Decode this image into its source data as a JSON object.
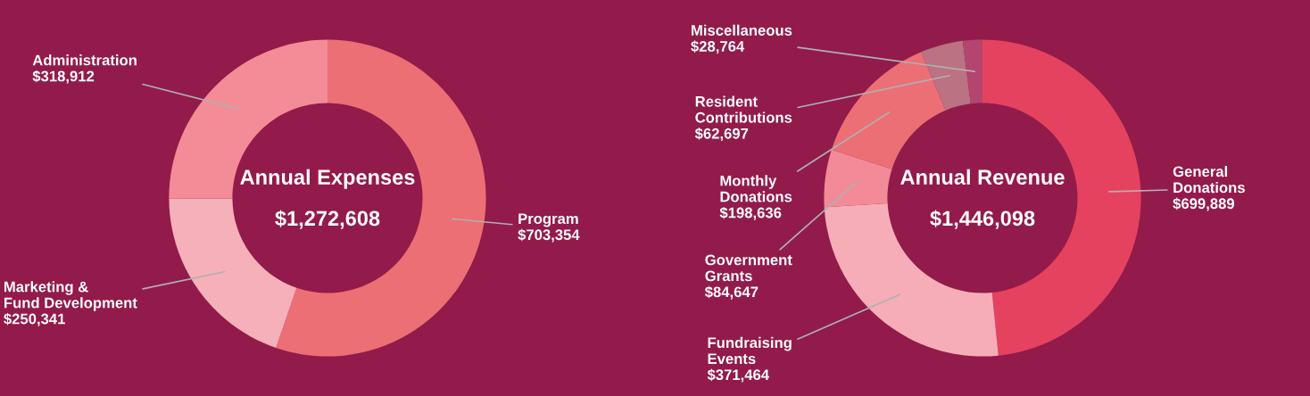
{
  "chart_data": [
    {
      "type": "donut",
      "title": "Annual Expenses",
      "subtitle": "$1,272,608",
      "categories": [
        "Program",
        "Marketing &\nFund Development",
        "Administration"
      ],
      "values": [
        703354,
        250341,
        318912
      ],
      "colors": [
        "#ec6f75",
        "#f6b0b9",
        "#f48c98"
      ],
      "value_labels": [
        "$703,354",
        "$250,341",
        "$318,912"
      ]
    },
    {
      "type": "donut",
      "title": "Annual Revenue",
      "subtitle": "$1,446,098",
      "categories": [
        "General\nDonations",
        "Fundraising\nEvents",
        "Government\nGrants",
        "Monthly\nDonations",
        "Resident\nContributions",
        "Miscellaneous"
      ],
      "values": [
        699889,
        371464,
        84647,
        198636,
        62697,
        28764
      ],
      "colors": [
        "#e5425f",
        "#f6adb7",
        "#f38a97",
        "#ec6f75",
        "#bb7282",
        "#b4456f"
      ],
      "value_labels": [
        "$699,889",
        "$371,464",
        "$84,647",
        "$198,636",
        "$62,697",
        "$28,764"
      ]
    }
  ]
}
